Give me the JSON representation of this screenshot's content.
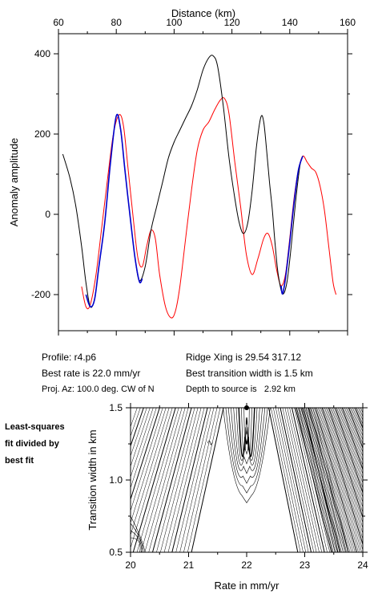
{
  "top_axis_label": "Distance (km)",
  "profile_info": {
    "profile": "Profile: r4.p6",
    "best_rate": "Best rate is 22.0 mm/yr",
    "proj_az": "Proj. Az: 100.0 deg. CW of N",
    "ridge_xing": "Ridge Xing is 29.54 317.12",
    "best_width": "Best transition width is 1.5 km",
    "depth": "Depth to source is   2.92 km"
  },
  "side_note": [
    "Least-squares",
    "fit divided by",
    "best fit"
  ],
  "colors": {
    "observed": "#000000",
    "synthetic": "#ff0000",
    "fit_window": "#0000cc"
  },
  "chart_data": [
    {
      "type": "line",
      "xlabel": "Distance (km)",
      "ylabel": "Anomaly amplitude",
      "xlim": [
        60,
        160
      ],
      "ylim": [
        -290,
        450
      ],
      "x_ticks": [
        60,
        80,
        100,
        120,
        140,
        160
      ],
      "y_ticks": [
        400,
        200,
        0,
        -200
      ],
      "series": [
        {
          "role": "observed",
          "color": "#000000",
          "points": [
            [
              61.5,
              150
            ],
            [
              64,
              90
            ],
            [
              66,
              20
            ],
            [
              68,
              -80
            ],
            [
              69.5,
              -170
            ],
            [
              71,
              -230
            ],
            [
              72.5,
              -210
            ],
            [
              74,
              -130
            ],
            [
              76,
              -20
            ],
            [
              78,
              130
            ],
            [
              80,
              245
            ],
            [
              81.5,
              210
            ],
            [
              83,
              110
            ],
            [
              85,
              -20
            ],
            [
              86.5,
              -110
            ],
            [
              88,
              -165
            ],
            [
              90,
              -130
            ],
            [
              92,
              -40
            ],
            [
              94,
              20
            ],
            [
              96,
              80
            ],
            [
              98,
              140
            ],
            [
              100,
              180
            ],
            [
              102,
              210
            ],
            [
              104,
              240
            ],
            [
              106,
              270
            ],
            [
              108,
              310
            ],
            [
              110,
              360
            ],
            [
              112,
              390
            ],
            [
              113.5,
              395
            ],
            [
              115,
              370
            ],
            [
              117,
              270
            ],
            [
              119,
              140
            ],
            [
              121,
              40
            ],
            [
              122.5,
              -20
            ],
            [
              124,
              -48
            ],
            [
              125.5,
              -20
            ],
            [
              127,
              60
            ],
            [
              128.5,
              170
            ],
            [
              130,
              242
            ],
            [
              131,
              230
            ],
            [
              132,
              160
            ],
            [
              133,
              80
            ],
            [
              134,
              10
            ],
            [
              135,
              -80
            ],
            [
              136,
              -150
            ],
            [
              137.5,
              -198
            ],
            [
              139,
              -170
            ],
            [
              140.5,
              -80
            ],
            [
              142,
              30
            ],
            [
              143.5,
              120
            ],
            [
              144.5,
              145
            ]
          ]
        },
        {
          "role": "synthetic",
          "color": "#ff0000",
          "points": [
            [
              68,
              -180
            ],
            [
              69.5,
              -230
            ],
            [
              71,
              -225
            ],
            [
              73,
              -150
            ],
            [
              75,
              -30
            ],
            [
              77,
              90
            ],
            [
              79,
              200
            ],
            [
              81,
              248
            ],
            [
              82.5,
              220
            ],
            [
              84,
              120
            ],
            [
              86,
              -20
            ],
            [
              87.5,
              -110
            ],
            [
              89,
              -130
            ],
            [
              90.5,
              -80
            ],
            [
              92,
              -40
            ],
            [
              93.5,
              -60
            ],
            [
              95,
              -150
            ],
            [
              97,
              -230
            ],
            [
              99,
              -258
            ],
            [
              100.5,
              -240
            ],
            [
              102,
              -180
            ],
            [
              104,
              -60
            ],
            [
              106,
              60
            ],
            [
              108,
              160
            ],
            [
              110,
              210
            ],
            [
              112,
              230
            ],
            [
              114,
              260
            ],
            [
              116,
              285
            ],
            [
              117.5,
              288
            ],
            [
              119,
              250
            ],
            [
              121,
              130
            ],
            [
              123,
              20
            ],
            [
              125,
              -100
            ],
            [
              127,
              -150
            ],
            [
              129,
              -110
            ],
            [
              131,
              -60
            ],
            [
              132.5,
              -48
            ],
            [
              134,
              -80
            ],
            [
              135.5,
              -140
            ],
            [
              137,
              -178
            ],
            [
              138.5,
              -150
            ],
            [
              140,
              -60
            ],
            [
              141.5,
              40
            ],
            [
              143,
              110
            ],
            [
              144.5,
              145
            ],
            [
              146,
              130
            ],
            [
              147.5,
              115
            ],
            [
              149,
              105
            ],
            [
              150.5,
              70
            ],
            [
              152,
              10
            ],
            [
              153.5,
              -80
            ],
            [
              155,
              -170
            ],
            [
              156,
              -200
            ]
          ]
        },
        {
          "role": "fit_window",
          "color": "#0000cc",
          "points": [
            [
              69.5,
              -200
            ],
            [
              71,
              -230
            ],
            [
              72.5,
              -212
            ],
            [
              74,
              -130
            ],
            [
              76,
              -20
            ],
            [
              78,
              130
            ],
            [
              80,
              245
            ],
            [
              81.5,
              212
            ],
            [
              83,
              110
            ],
            [
              85,
              -20
            ],
            [
              86.5,
              -110
            ],
            [
              88,
              -168
            ],
            [
              89,
              -160
            ],
            [
              137,
              -178
            ],
            [
              137.5,
              -198
            ],
            [
              138.5,
              -160
            ],
            [
              140,
              -70
            ],
            [
              141.5,
              30
            ],
            [
              143,
              110
            ],
            [
              144.5,
              145
            ]
          ]
        }
      ]
    },
    {
      "type": "heatmap",
      "xlabel": "Rate in mm/yr",
      "ylabel": "Transition width in km",
      "xlim": [
        20,
        24
      ],
      "ylim": [
        0.5,
        1.5
      ],
      "x_ticks": [
        20,
        21,
        22,
        23,
        24
      ],
      "y_ticks": [
        0.5,
        1.0,
        1.5
      ],
      "best_fit": {
        "rate": 22.0,
        "width": 1.5
      },
      "contour_label": "2"
    }
  ]
}
